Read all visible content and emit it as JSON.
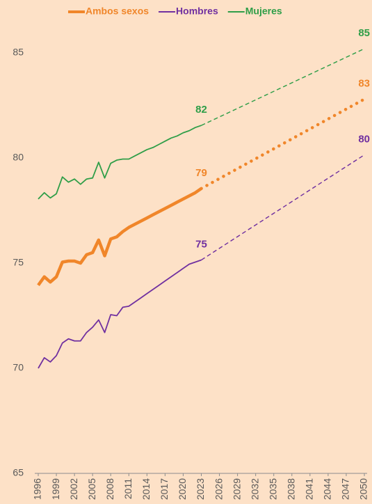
{
  "chart_data": {
    "type": "line",
    "x": [
      1996,
      1997,
      1998,
      1999,
      2000,
      2001,
      2002,
      2003,
      2004,
      2005,
      2006,
      2007,
      2008,
      2009,
      2010,
      2011,
      2012,
      2013,
      2014,
      2015,
      2016,
      2017,
      2018,
      2019,
      2020,
      2021,
      2022,
      2023,
      2050
    ],
    "projection_start": 2023,
    "series": [
      {
        "name": "Ambos sexos",
        "color": "#f0862a",
        "width": 4.5,
        "projection_dash": "dotted",
        "values": [
          73.95,
          74.35,
          74.1,
          74.35,
          75.05,
          75.1,
          75.1,
          75.0,
          75.4,
          75.5,
          76.1,
          75.35,
          76.15,
          76.25,
          76.5,
          76.7,
          76.85,
          77.0,
          77.15,
          77.3,
          77.45,
          77.6,
          77.75,
          77.9,
          78.05,
          78.2,
          78.35,
          78.55,
          82.8
        ],
        "value_labels": [
          null,
          null,
          null,
          null,
          null,
          null,
          null,
          null,
          null,
          null,
          null,
          null,
          null,
          null,
          null,
          null,
          null,
          null,
          null,
          null,
          null,
          null,
          null,
          null,
          null,
          null,
          null,
          "79",
          "83"
        ]
      },
      {
        "name": "Hombres",
        "color": "#7030a0",
        "width": 1.8,
        "projection_dash": "dashed",
        "values": [
          70.0,
          70.5,
          70.3,
          70.6,
          71.2,
          71.4,
          71.3,
          71.3,
          71.7,
          71.95,
          72.3,
          71.7,
          72.55,
          72.5,
          72.9,
          72.95,
          73.15,
          73.35,
          73.55,
          73.75,
          73.95,
          74.15,
          74.35,
          74.55,
          74.75,
          74.95,
          75.05,
          75.15,
          80.15
        ],
        "value_labels": [
          null,
          null,
          null,
          null,
          null,
          null,
          null,
          null,
          null,
          null,
          null,
          null,
          null,
          null,
          null,
          null,
          null,
          null,
          null,
          null,
          null,
          null,
          null,
          null,
          null,
          null,
          null,
          "75",
          "80"
        ]
      },
      {
        "name": "Mujeres",
        "color": "#2f9e48",
        "width": 1.8,
        "projection_dash": "dashed",
        "values": [
          78.05,
          78.35,
          78.1,
          78.3,
          79.1,
          78.85,
          79.0,
          78.75,
          79.0,
          79.05,
          79.8,
          79.05,
          79.75,
          79.9,
          79.95,
          79.95,
          80.1,
          80.25,
          80.4,
          80.5,
          80.65,
          80.8,
          80.95,
          81.05,
          81.2,
          81.3,
          81.45,
          81.55,
          85.2
        ],
        "value_labels": [
          null,
          null,
          null,
          null,
          null,
          null,
          null,
          null,
          null,
          null,
          null,
          null,
          null,
          null,
          null,
          null,
          null,
          null,
          null,
          null,
          null,
          null,
          null,
          null,
          null,
          null,
          null,
          "82",
          "85"
        ]
      }
    ],
    "ylim": [
      65,
      87
    ],
    "yticks": [
      65,
      70,
      75,
      80,
      85
    ],
    "xlim": [
      1996,
      2050
    ],
    "xticks": [
      1996,
      1999,
      2002,
      2005,
      2008,
      2011,
      2014,
      2017,
      2020,
      2023,
      2026,
      2029,
      2032,
      2035,
      2038,
      2041,
      2044,
      2047,
      2050
    ],
    "grid": false,
    "legend": "top"
  }
}
